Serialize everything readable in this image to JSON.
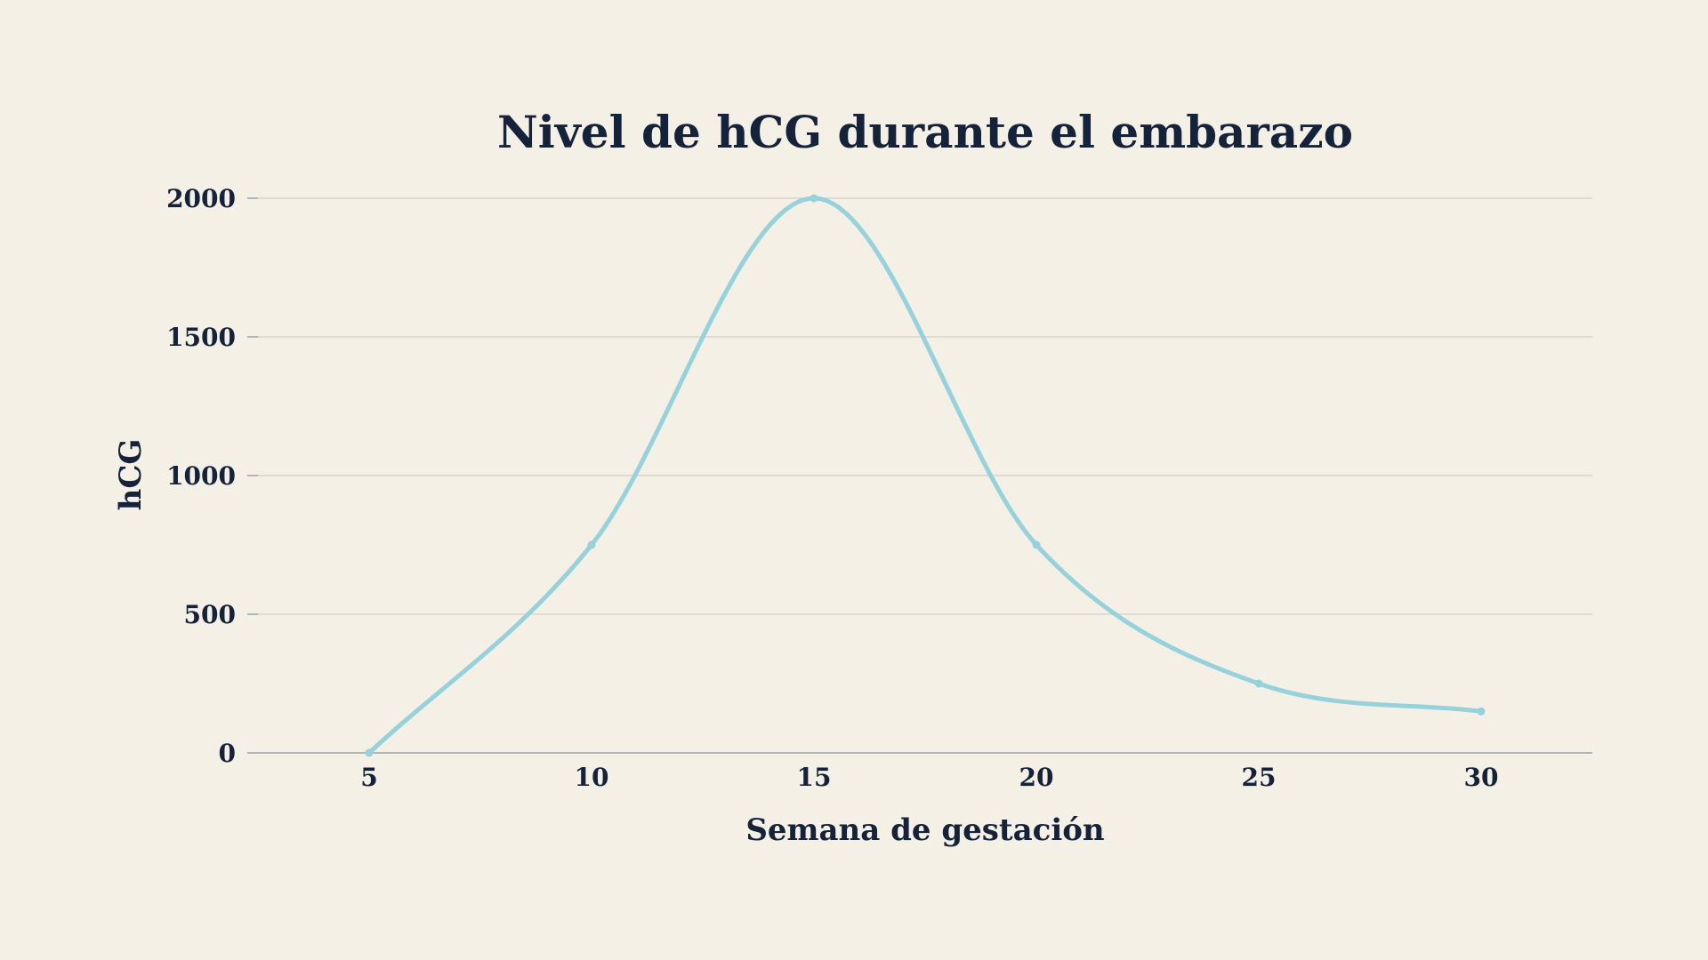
{
  "chart_data": {
    "type": "line",
    "title": "Nivel de hCG durante el embarazo",
    "xlabel": "Semana de gestación",
    "ylabel": "hCG",
    "x": [
      5,
      10,
      15,
      20,
      25,
      30
    ],
    "x_ticks": [
      "5",
      "10",
      "15",
      "20",
      "25",
      "30"
    ],
    "xlim": [
      2.5,
      32.5
    ],
    "y_ticks": [
      "0",
      "500",
      "1000",
      "1500",
      "2000"
    ],
    "ylim": [
      0,
      2000
    ],
    "grid": true,
    "smooth": true,
    "series": [
      {
        "values": [
          0,
          750,
          2000,
          750,
          250,
          150
        ],
        "color": "#96d2dc"
      }
    ]
  },
  "colors": {
    "background": "#f5f0e6",
    "text": "#14233a",
    "grid": "#d6d6c8",
    "axis": "#9aa3a8"
  }
}
